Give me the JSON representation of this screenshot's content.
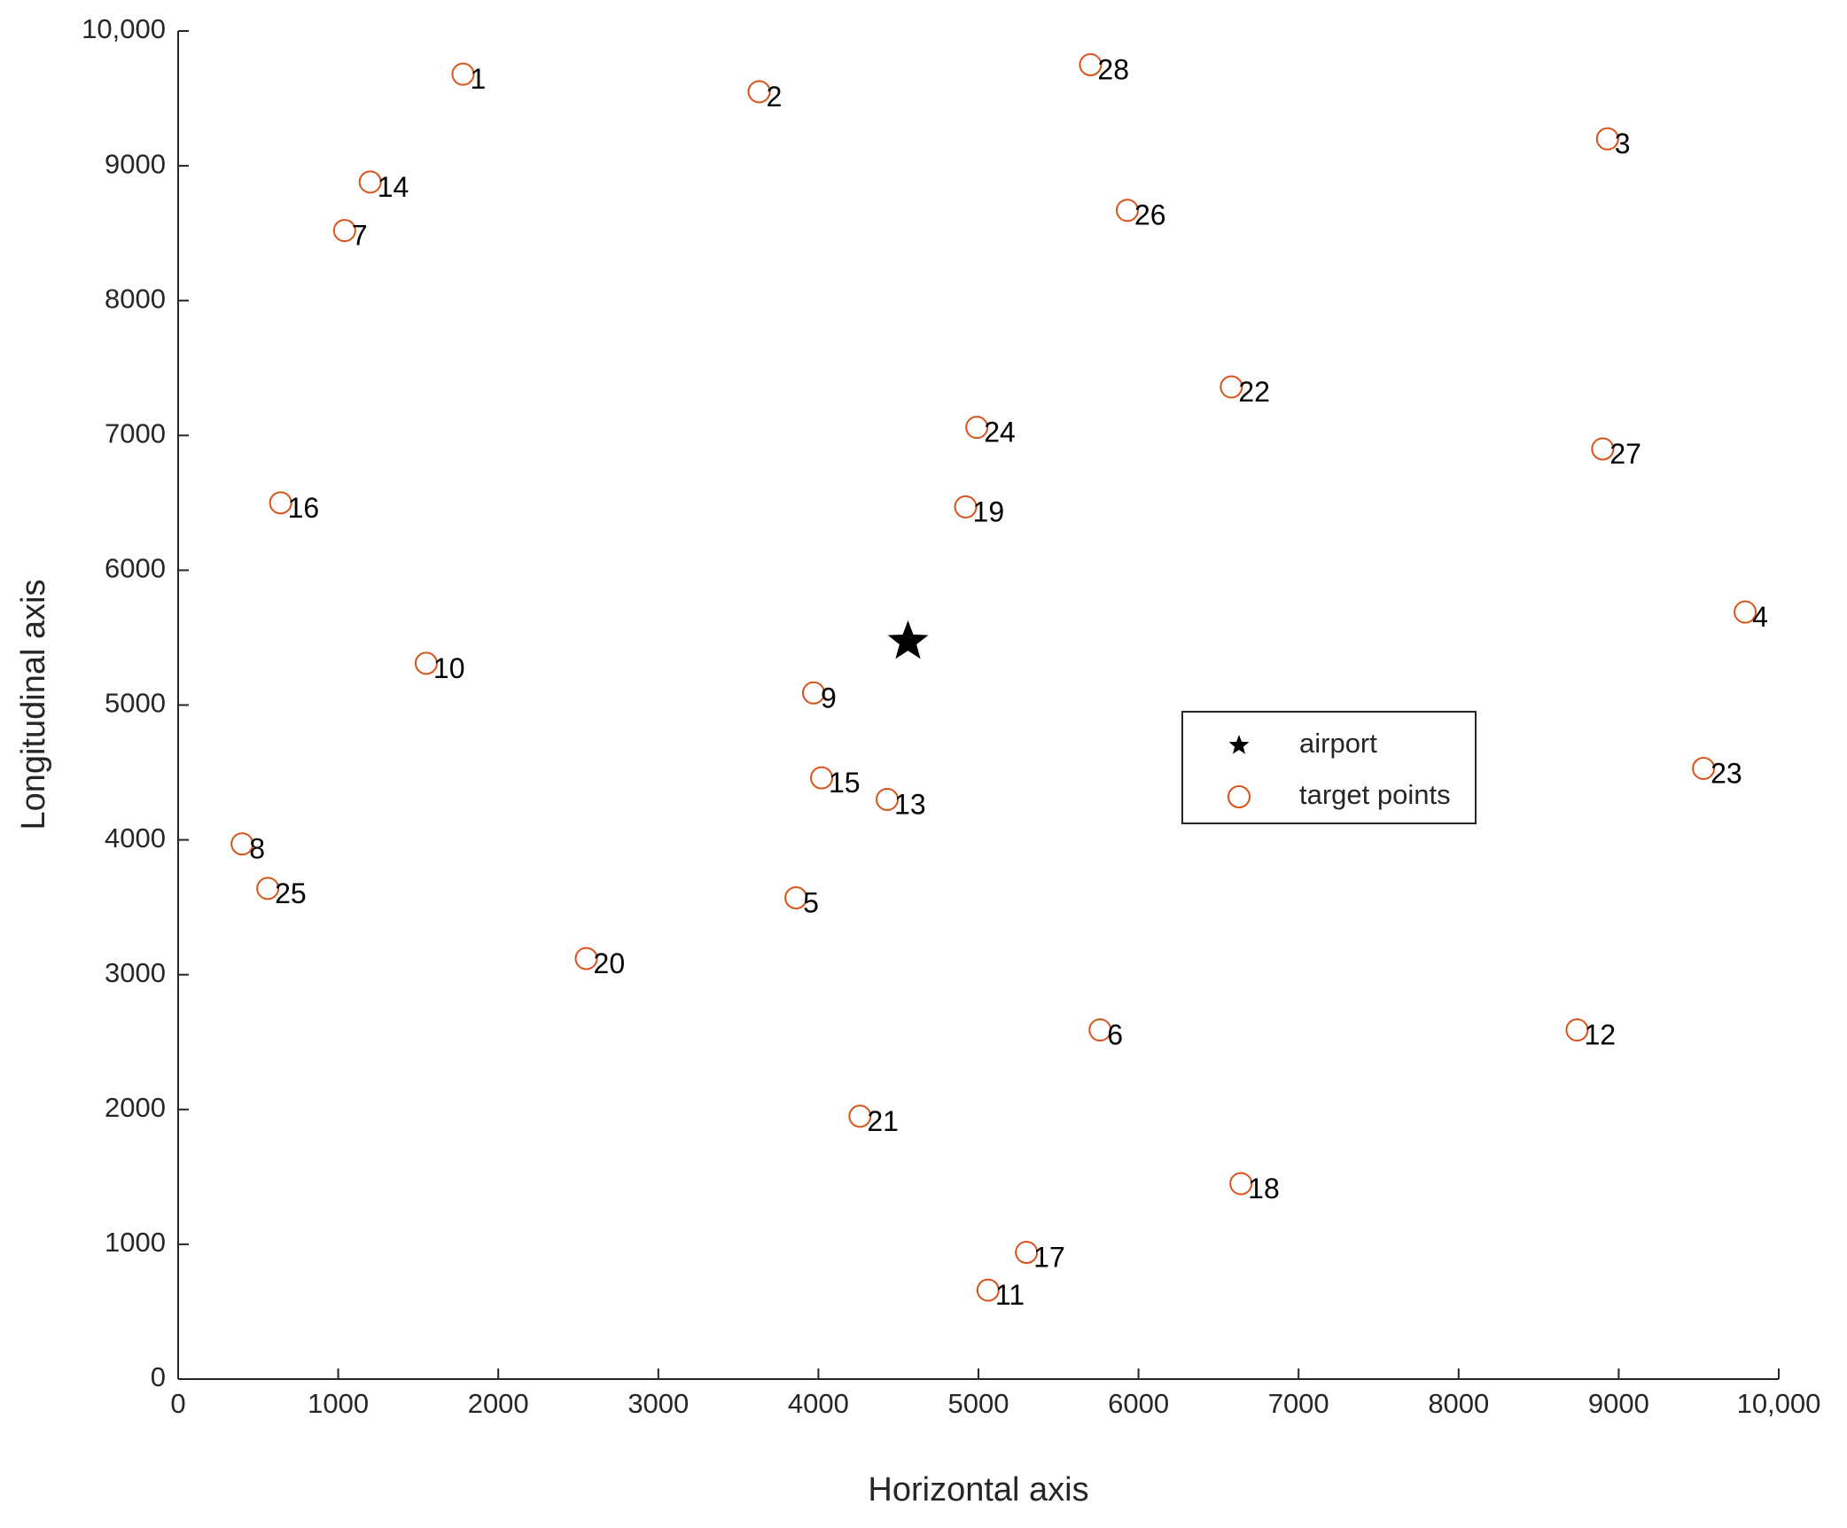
{
  "chart_data": {
    "type": "scatter",
    "x_label": "Horizontal axis",
    "y_label": "Longitudinal axis",
    "xlim": [
      0,
      10000
    ],
    "ylim": [
      0,
      10000
    ],
    "xticks": [
      0,
      1000,
      2000,
      3000,
      4000,
      5000,
      6000,
      7000,
      8000,
      9000,
      {
        "value": 10000,
        "label": "10,000"
      }
    ],
    "yticks": [
      0,
      1000,
      2000,
      3000,
      4000,
      5000,
      6000,
      7000,
      8000,
      9000,
      {
        "value": 10000,
        "label": "10,000"
      }
    ],
    "legend": "center-right",
    "series": [
      {
        "name": "airport",
        "color": "#000000",
        "marker": "star",
        "x": [
          4560
        ],
        "y": [
          5470
        ]
      },
      {
        "name": "target points",
        "color": "#d95319",
        "marker": "circle",
        "labels": [
          "1",
          "2",
          "3",
          "4",
          "5",
          "6",
          "7",
          "8",
          "9",
          "10",
          "11",
          "12",
          "13",
          "14",
          "15",
          "16",
          "17",
          "18",
          "19",
          "20",
          "21",
          "22",
          "23",
          "24",
          "25",
          "26",
          "27",
          "28"
        ],
        "x": [
          1780,
          3630,
          8930,
          9790,
          3860,
          5760,
          1040,
          400,
          3970,
          1550,
          5060,
          8740,
          4430,
          1200,
          4020,
          640,
          5300,
          6640,
          4920,
          2550,
          4260,
          6580,
          9530,
          4990,
          560,
          5930,
          8900,
          5700
        ],
        "y": [
          9680,
          9550,
          9200,
          5690,
          3570,
          2590,
          8520,
          3970,
          5090,
          5310,
          660,
          2590,
          4300,
          8880,
          4460,
          6500,
          940,
          1450,
          6470,
          3120,
          1950,
          7360,
          4530,
          7060,
          3640,
          8670,
          6900,
          9750
        ]
      }
    ]
  }
}
